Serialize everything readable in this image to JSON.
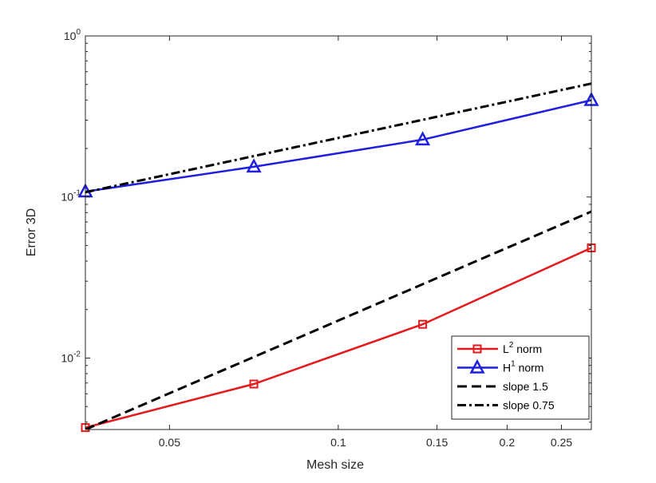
{
  "chart_data": {
    "type": "line",
    "xlabel": "Mesh size",
    "ylabel": "Error 3D",
    "xscale": "log",
    "yscale": "log",
    "xlim": [
      0.0354,
      0.2827
    ],
    "ylim": [
      0.0036,
      1.0
    ],
    "grid": false,
    "legend_position": "bottom-right",
    "x_ticks": [
      {
        "value": 0.05,
        "label": "0.05"
      },
      {
        "value": 0.1,
        "label": "0.1"
      },
      {
        "value": 0.15,
        "label": "0.15"
      },
      {
        "value": 0.2,
        "label": "0.2"
      },
      {
        "value": 0.25,
        "label": "0.25"
      }
    ],
    "y_ticks": [
      {
        "value": 1.0,
        "base": "10",
        "exp": "0"
      },
      {
        "value": 0.1,
        "base": "10",
        "exp": "-1"
      },
      {
        "value": 0.01,
        "base": "10",
        "exp": "-2"
      }
    ],
    "series": [
      {
        "name_base": "L",
        "name_sup": "2",
        "name_rest": " norm",
        "color": "#e41a1c",
        "marker": "square",
        "dash": "solid",
        "x": [
          0.0354,
          0.0707,
          0.1414,
          0.2827
        ],
        "y": [
          0.0037,
          0.0069,
          0.0162,
          0.0483
        ]
      },
      {
        "name_base": "H",
        "name_sup": "1",
        "name_rest": " norm",
        "color": "#1f1fe0",
        "marker": "triangle",
        "dash": "solid",
        "x": [
          0.0354,
          0.0707,
          0.1414,
          0.2827
        ],
        "y": [
          0.108,
          0.154,
          0.227,
          0.399
        ]
      },
      {
        "name_base": "slope 1.5",
        "name_sup": "",
        "name_rest": "",
        "color": "#000000",
        "marker": "none",
        "dash": "dashed",
        "x": [
          0.0354,
          0.2827
        ],
        "y": [
          0.0036,
          0.0812
        ]
      },
      {
        "name_base": "slope 0.75",
        "name_sup": "",
        "name_rest": "",
        "color": "#000000",
        "marker": "none",
        "dash": "dashdot",
        "x": [
          0.0354,
          0.2827
        ],
        "y": [
          0.107,
          0.506
        ]
      }
    ]
  }
}
